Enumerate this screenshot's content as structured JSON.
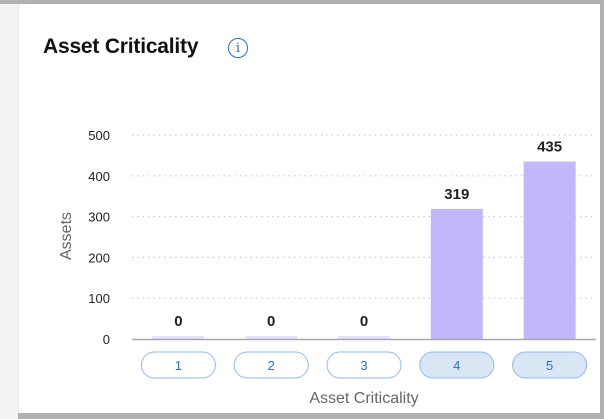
{
  "header": {
    "title": "Asset Criticality",
    "info_icon": "info-circle-icon"
  },
  "chart_data": {
    "type": "bar",
    "title": "Asset Criticality",
    "xlabel": "Asset Criticality",
    "ylabel": "Assets",
    "categories": [
      "1",
      "2",
      "3",
      "4",
      "5"
    ],
    "values": [
      0,
      0,
      0,
      319,
      435
    ],
    "value_labels": [
      "0",
      "0",
      "0",
      "319",
      "435"
    ],
    "ylim": [
      0,
      500
    ],
    "yticks": [
      "0",
      "100",
      "200",
      "300",
      "400",
      "500"
    ],
    "grid": true,
    "selected_categories": [
      "4",
      "5"
    ],
    "colors": {
      "bar": "#c1b8fb",
      "bar_zero": "#e6e2fb",
      "pill_border": "#93b8e4",
      "pill_selected_fill": "#d8e6f6",
      "pill_text": "#2f6db5"
    }
  }
}
